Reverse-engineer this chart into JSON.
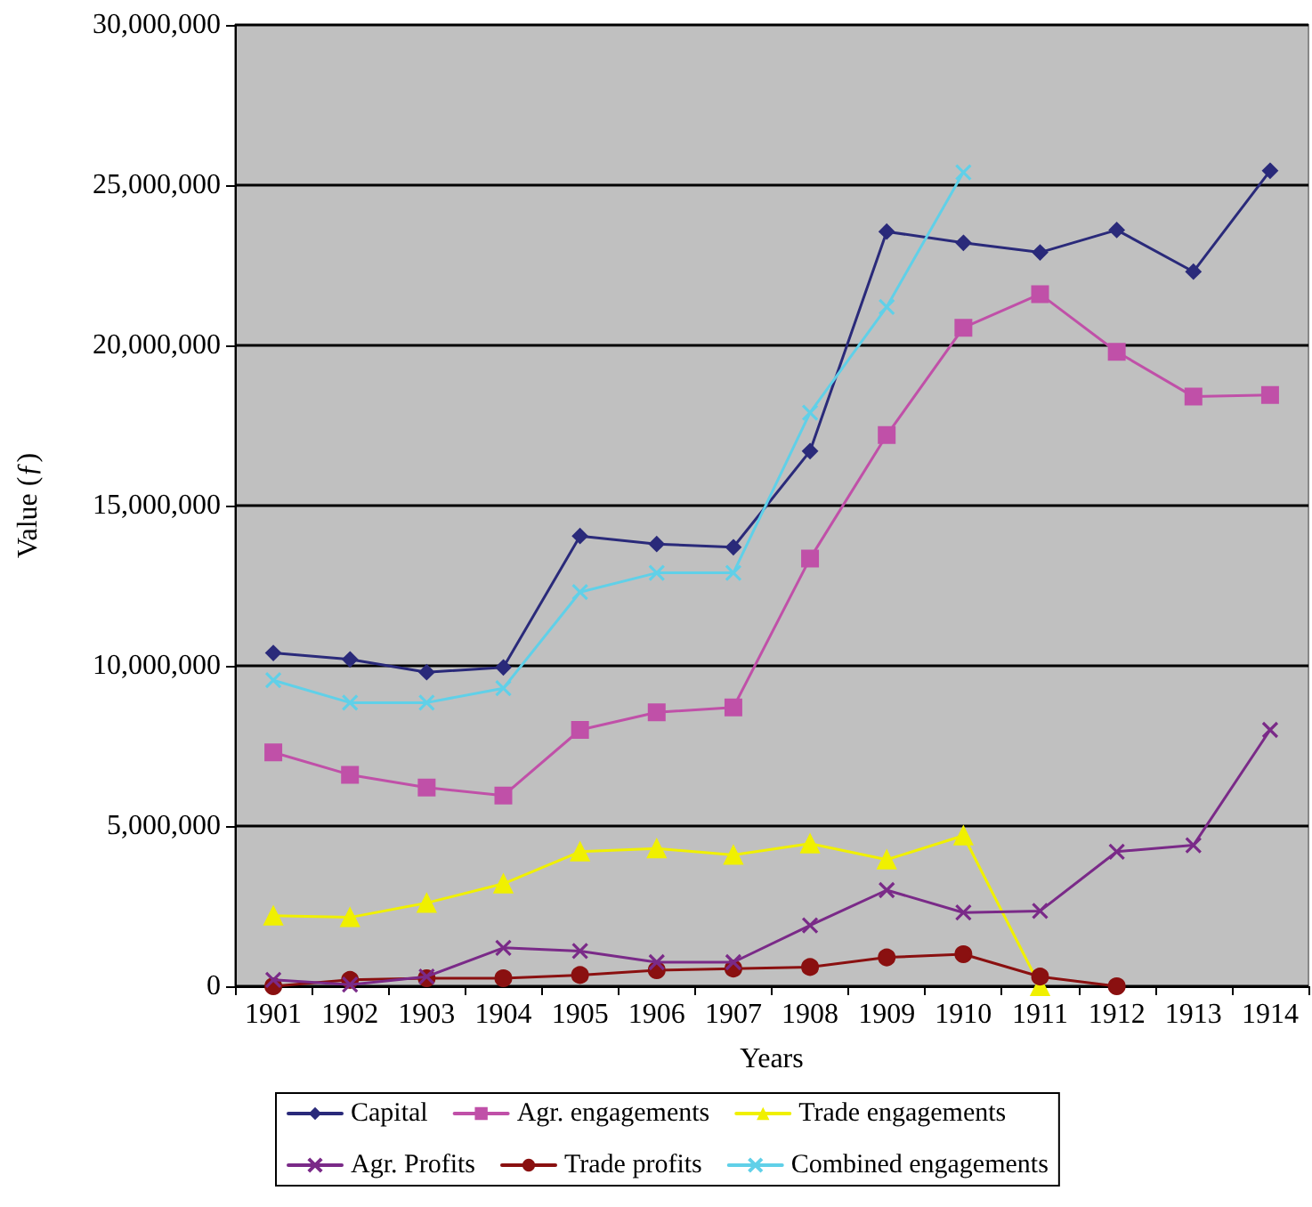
{
  "chart_data": {
    "type": "line",
    "xlabel": "Years",
    "ylabel": "Value (ƒ)",
    "categories": [
      "1901",
      "1902",
      "1903",
      "1904",
      "1905",
      "1906",
      "1907",
      "1908",
      "1909",
      "1910",
      "1911",
      "1912",
      "1913",
      "1914"
    ],
    "ylim": [
      0,
      30000000
    ],
    "yticks": [
      0,
      {
        "value": 5000000,
        "label": "5,000,000"
      },
      {
        "value": 10000000,
        "label": "10,000,000"
      },
      {
        "value": 15000000,
        "label": "15,000,000"
      },
      {
        "value": 20000000,
        "label": "20,000,000"
      },
      {
        "value": 25000000,
        "label": "25,000,000"
      },
      {
        "value": 30000000,
        "label": "30,000,000"
      }
    ],
    "grid": "y",
    "legend": "bottom",
    "series": [
      {
        "name": "Capital",
        "color": "#2a2a7a",
        "marker": "diamond",
        "values": [
          10400000,
          10200000,
          9800000,
          9950000,
          14050000,
          13800000,
          13700000,
          16700000,
          23550000,
          23200000,
          22900000,
          23600000,
          22300000,
          25450000
        ]
      },
      {
        "name": "Agr. engagements",
        "color": "#c050a8",
        "marker": "square",
        "values": [
          7300000,
          6600000,
          6200000,
          5950000,
          8000000,
          8550000,
          8700000,
          13350000,
          17200000,
          20550000,
          21600000,
          19800000,
          18400000,
          18450000
        ]
      },
      {
        "name": "Trade engagements",
        "color": "#f0f000",
        "marker": "triangle",
        "values": [
          2200000,
          2150000,
          2600000,
          3200000,
          4200000,
          4300000,
          4100000,
          4450000,
          3950000,
          4700000,
          0,
          null,
          null,
          null
        ]
      },
      {
        "name": "Agr. Profits",
        "color": "#7a2a88",
        "marker": "cross",
        "values": [
          200000,
          50000,
          300000,
          1200000,
          1100000,
          750000,
          750000,
          1900000,
          3000000,
          2300000,
          2350000,
          4200000,
          4400000,
          8000000
        ]
      },
      {
        "name": "Trade profits",
        "color": "#8a1010",
        "marker": "circle",
        "values": [
          0,
          200000,
          250000,
          250000,
          350000,
          500000,
          550000,
          600000,
          900000,
          1000000,
          300000,
          0,
          null,
          null
        ]
      },
      {
        "name": "Combined engagements",
        "color": "#60d0e8",
        "marker": "cross",
        "values": [
          9550000,
          8850000,
          8850000,
          9300000,
          12300000,
          12900000,
          12900000,
          17900000,
          21200000,
          25400000,
          null,
          null,
          null,
          null
        ]
      }
    ]
  }
}
